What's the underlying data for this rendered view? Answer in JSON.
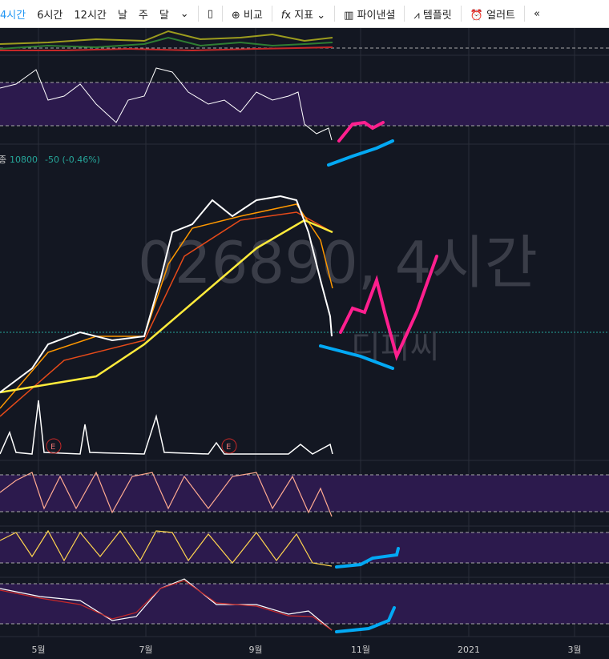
{
  "toolbar": {
    "intervals": [
      "4시간",
      "6시간",
      "12시간",
      "날",
      "주",
      "달"
    ],
    "buttons": [
      "비교",
      "지표",
      "파이낸셜",
      "템플릿",
      "얼러트"
    ]
  },
  "legend": {
    "label": "종",
    "close": "10800",
    "change": "-50 (-0.46%)"
  },
  "watermark": {
    "symbol": "026890, 4시간",
    "name": "디피씨"
  },
  "events": [
    "E",
    "E"
  ],
  "x_axis": [
    "5월",
    "7월",
    "9월",
    "11월",
    "2021",
    "3월"
  ]
}
